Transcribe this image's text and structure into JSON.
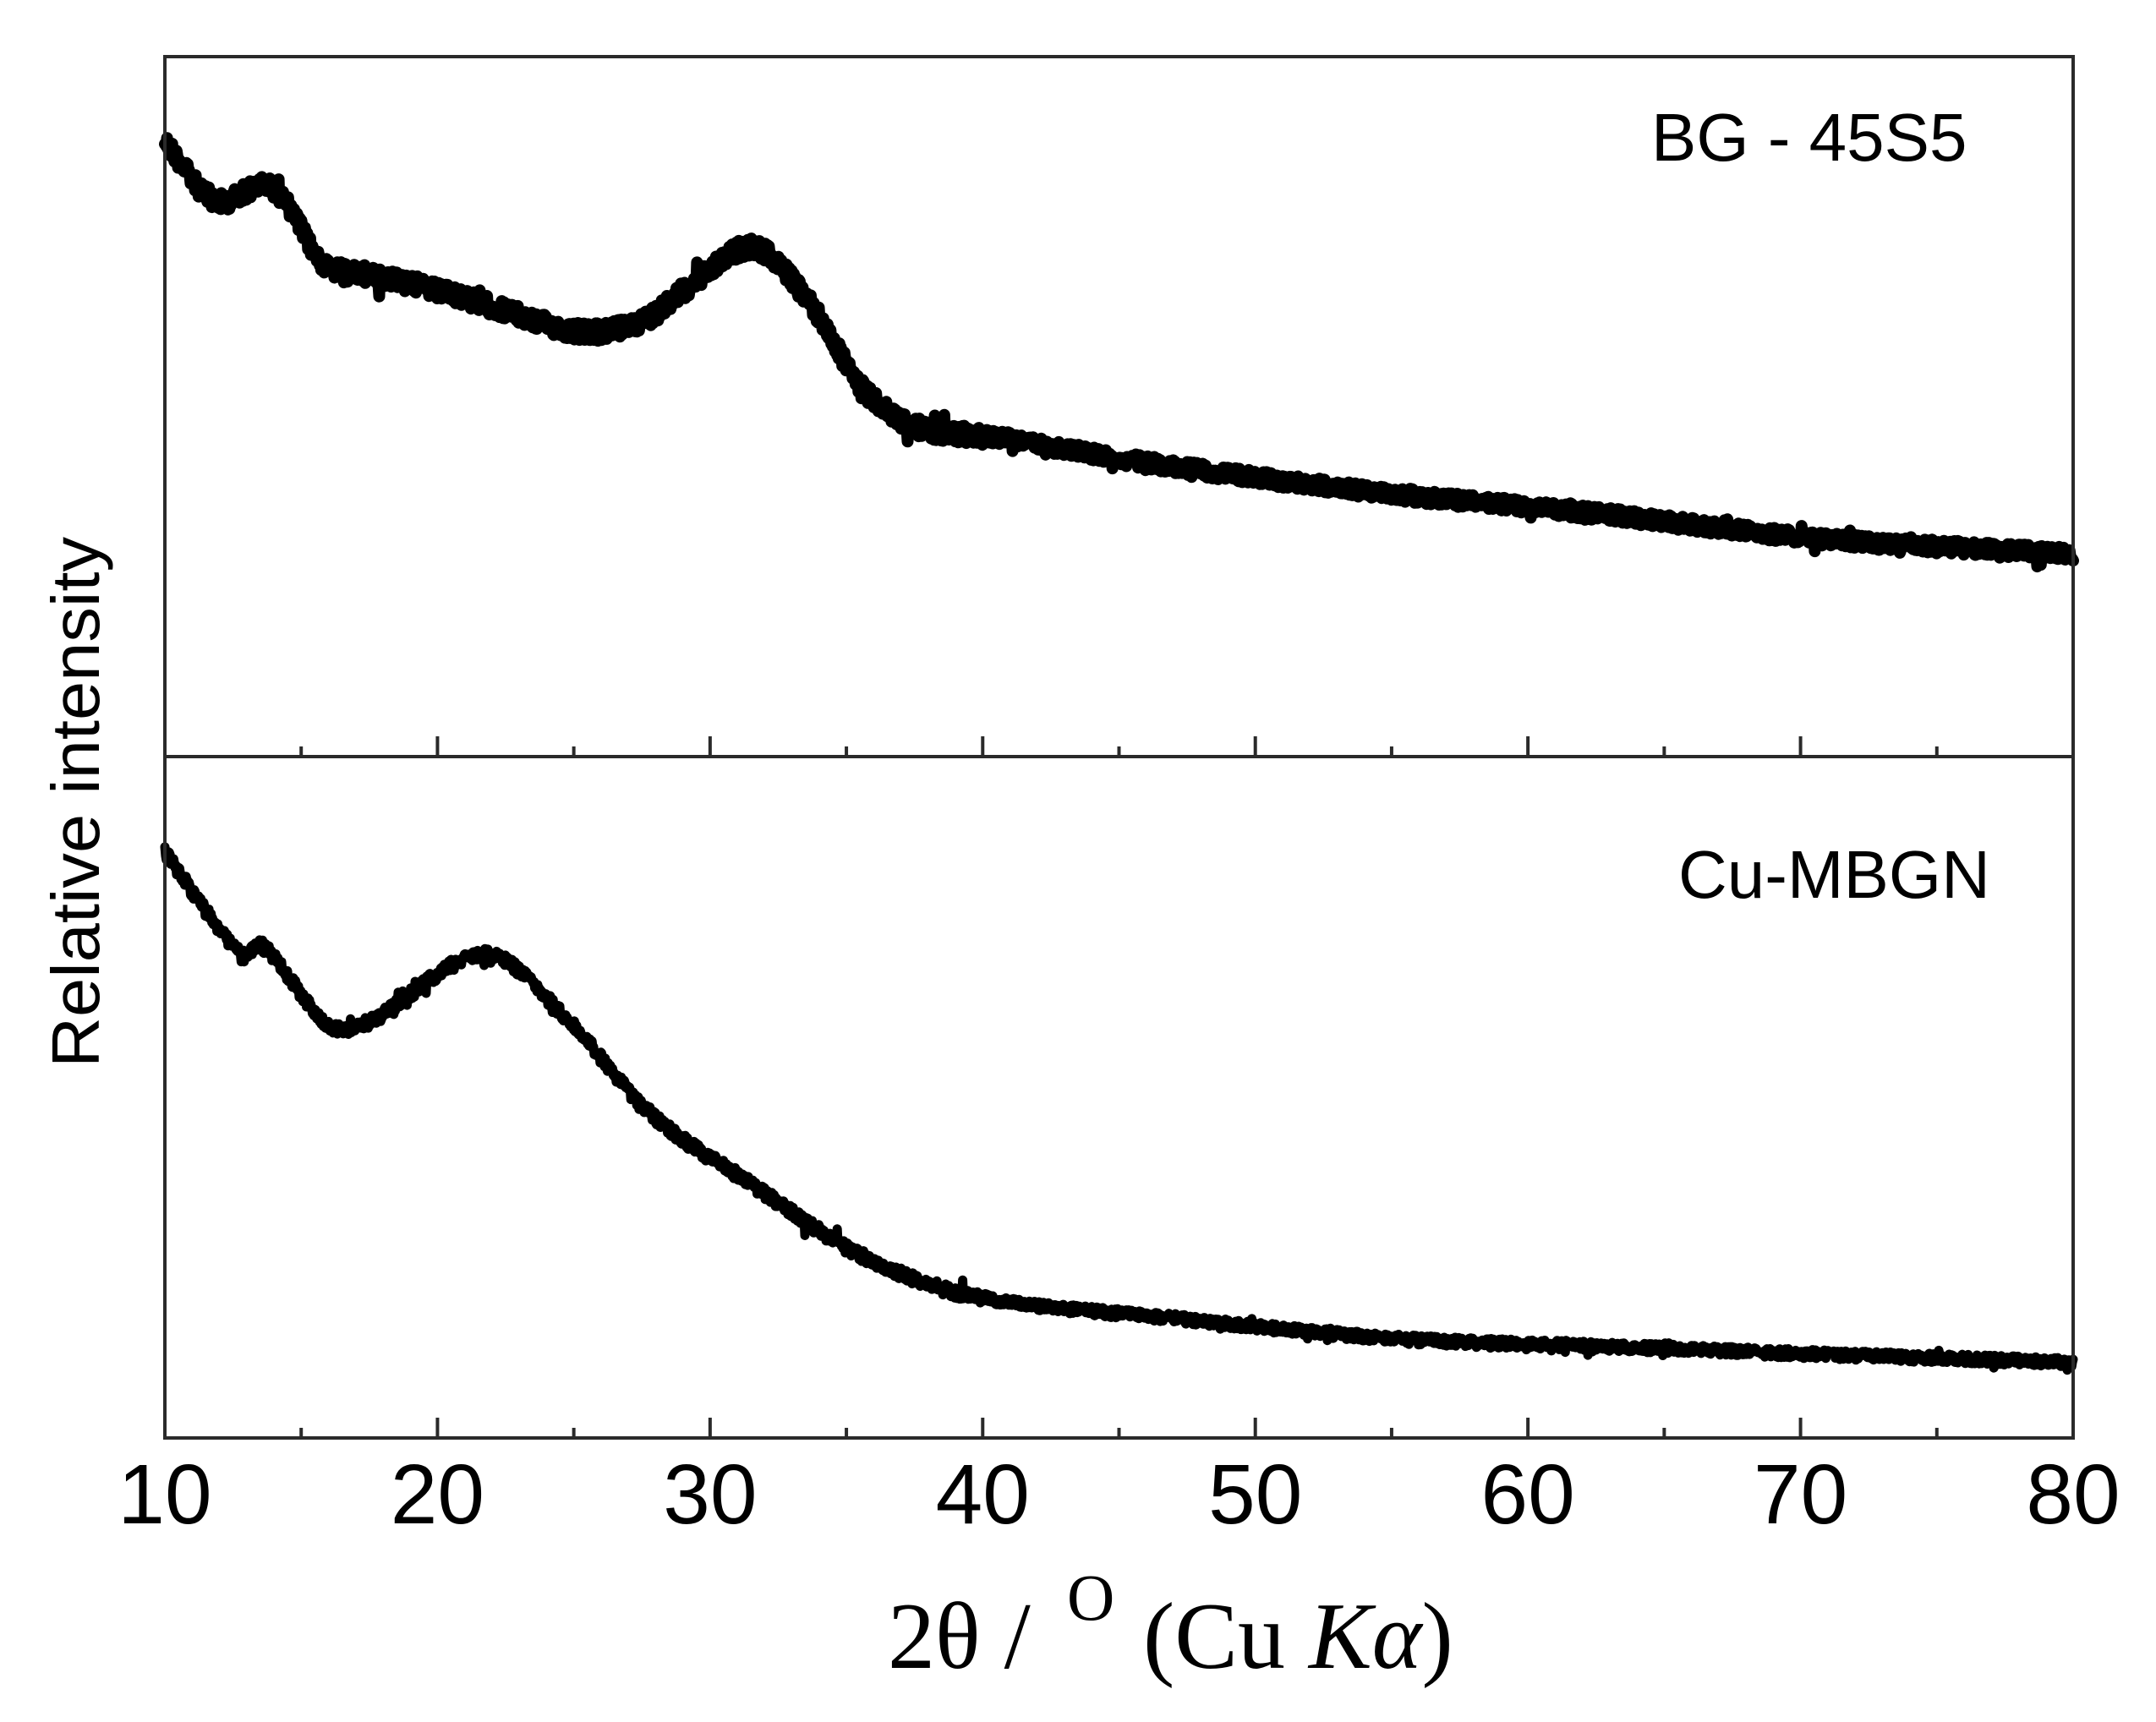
{
  "chart_data": {
    "type": "line",
    "title": "",
    "xlabel": "2θ / ° (Cu Kα)",
    "xlabel_parts": {
      "main": "2θ / ",
      "superscript": "O",
      "paren_open": "(Cu ",
      "italic": "Kα",
      "paren_close": ")"
    },
    "ylabel": "Relative intensity",
    "xlim": [
      10,
      80
    ],
    "x_ticks": [
      10,
      20,
      30,
      40,
      50,
      60,
      70,
      80
    ],
    "x_tick_labels": [
      "10",
      "20",
      "30",
      "40",
      "50",
      "60",
      "70",
      "80"
    ],
    "x_minor_step": 5,
    "y_ticks": [],
    "grid": false,
    "legend": "none",
    "layout": "two vertically stacked panels sharing x-axis, offset traces, arbitrary y units",
    "panels": [
      {
        "label": "BG - 45S5",
        "series": [
          {
            "name": "BG - 45S5",
            "x": [
              10.0,
              11.8,
              13.6,
              14.4,
              15.8,
              17.8,
              21.7,
              25.3,
              27.6,
              29.6,
              31.6,
              33.6,
              35.6,
              37.5,
              40.8,
              46.2,
              54.3,
              62.5,
              70.6,
              80.0
            ],
            "y": [
              90,
              71,
              76,
              71,
              51,
              47,
              38,
              29,
              33,
              46,
              56,
              39,
              11,
              -1,
              -5,
              -13,
              -22,
              -29,
              -37,
              -42
            ],
            "note": "relative intensity, arbitrary units read from pixel heights (0 = ~40% of panel height)"
          }
        ]
      },
      {
        "label": "Cu-MBGN",
        "series": [
          {
            "name": "Cu-MBGN",
            "x": [
              10.0,
              12.8,
              13.6,
              16.4,
              21.7,
              24.7,
              27.7,
              31.6,
              35.6,
              39.6,
              47.4,
              55.3,
              63.1,
              70.9,
              80.0
            ],
            "y": [
              129,
              103,
              105,
              84,
              103,
              87,
              63,
              44,
              26,
              16,
              10,
              5,
              3,
              1,
              -1
            ],
            "note": "relative intensity, arbitrary units read from pixel heights"
          }
        ]
      }
    ]
  },
  "plot": {
    "ylabel": "Relative intensity",
    "panel_labels": [
      "BG - 45S5",
      "Cu-MBGN"
    ],
    "trace_color": "#000000",
    "axis_color": "#2a2a2a"
  }
}
